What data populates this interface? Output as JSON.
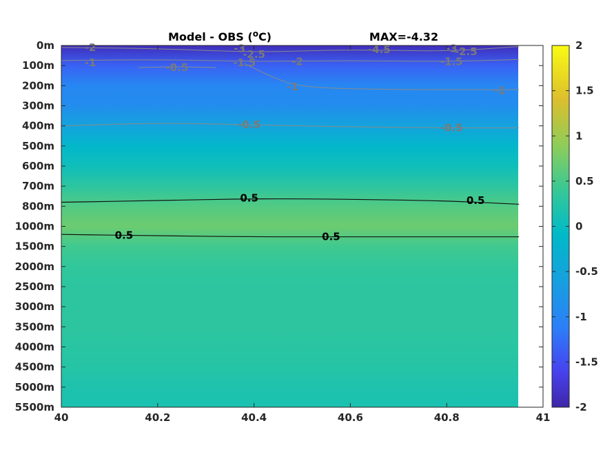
{
  "chart_data": {
    "type": "heatmap",
    "title": "Model - OBS (°C)",
    "title_parts": {
      "prefix": "Model - OBS (",
      "superscript": "o",
      "suffix": "C)"
    },
    "annotation": "MAX=-4.32",
    "x_ticks": [
      "40",
      "40.2",
      "40.4",
      "40.6",
      "40.8",
      "41"
    ],
    "x_tick_values": [
      40,
      40.2,
      40.4,
      40.6,
      40.8,
      41
    ],
    "xlim": [
      40,
      41
    ],
    "data_x_max": 40.95,
    "y_ticks": [
      "0m",
      "100m",
      "200m",
      "300m",
      "400m",
      "500m",
      "600m",
      "700m",
      "800m",
      "1000m",
      "1500m",
      "2000m",
      "2500m",
      "3000m",
      "3500m",
      "4000m",
      "4500m",
      "5000m",
      "5500m"
    ],
    "colorbar": {
      "ticks": [
        "2",
        "1.5",
        "1",
        "0.5",
        "0",
        "-0.5",
        "-1",
        "-1.5",
        "-2"
      ],
      "tick_values": [
        2,
        1.5,
        1,
        0.5,
        0,
        -0.5,
        -1,
        -1.5,
        -2
      ],
      "range": [
        -2,
        2
      ],
      "colormap": "parula"
    },
    "depth_profile": [
      {
        "depth": "0m",
        "value": -1.9
      },
      {
        "depth": "100m",
        "value": -1.35
      },
      {
        "depth": "200m",
        "value": -1.0
      },
      {
        "depth": "300m",
        "value": -0.9
      },
      {
        "depth": "400m",
        "value": -0.55
      },
      {
        "depth": "500m",
        "value": -0.15
      },
      {
        "depth": "600m",
        "value": 0.05
      },
      {
        "depth": "700m",
        "value": 0.3
      },
      {
        "depth": "800m",
        "value": 0.55
      },
      {
        "depth": "1000m",
        "value": 0.7
      },
      {
        "depth": "1500m",
        "value": 0.45
      },
      {
        "depth": "2000m",
        "value": 0.35
      },
      {
        "depth": "2500m",
        "value": 0.3
      },
      {
        "depth": "3000m",
        "value": 0.3
      },
      {
        "depth": "3500m",
        "value": 0.3
      },
      {
        "depth": "4000m",
        "value": 0.28
      },
      {
        "depth": "4500m",
        "value": 0.25
      },
      {
        "depth": "5000m",
        "value": 0.18
      },
      {
        "depth": "5500m",
        "value": 0.15
      }
    ],
    "contours": [
      {
        "level": 0.5,
        "style": "black",
        "points": [
          [
            40,
            7.8
          ],
          [
            40.2,
            7.72
          ],
          [
            40.4,
            7.62
          ],
          [
            40.6,
            7.65
          ],
          [
            40.8,
            7.73
          ],
          [
            40.95,
            7.9
          ]
        ],
        "labels": [
          {
            "text": "0.5",
            "x": 40.39,
            "y": 7.6
          },
          {
            "text": "0.5",
            "x": 40.86,
            "y": 7.72
          }
        ]
      },
      {
        "level": 0.5,
        "style": "black",
        "points": [
          [
            40,
            9.4
          ],
          [
            40.2,
            9.47
          ],
          [
            40.4,
            9.52
          ],
          [
            40.6,
            9.52
          ],
          [
            40.8,
            9.52
          ],
          [
            40.95,
            9.52
          ]
        ],
        "labels": [
          {
            "text": "0.5",
            "x": 40.13,
            "y": 9.45
          },
          {
            "text": "0.5",
            "x": 40.56,
            "y": 9.52
          }
        ]
      },
      {
        "level": -0.5,
        "style": "gray",
        "points": [
          [
            40,
            4.0
          ],
          [
            40.2,
            3.85
          ],
          [
            40.4,
            3.95
          ],
          [
            40.6,
            4.05
          ],
          [
            40.8,
            4.1
          ],
          [
            40.95,
            4.1
          ]
        ],
        "labels": [
          {
            "text": "-0.5",
            "x": 40.39,
            "y": 3.95
          },
          {
            "text": "-0.5",
            "x": 40.81,
            "y": 4.1
          }
        ]
      },
      {
        "level": -1,
        "style": "gray",
        "points": [
          [
            40.38,
            0.9
          ],
          [
            40.44,
            1.6
          ],
          [
            40.5,
            2.1
          ],
          [
            40.7,
            2.2
          ],
          [
            40.95,
            2.2
          ]
        ],
        "labels": [
          {
            "text": "-1",
            "x": 40.48,
            "y": 2.05
          },
          {
            "text": "-1",
            "x": 40.91,
            "y": 2.25
          }
        ]
      },
      {
        "level": -0.5,
        "style": "gray",
        "points": [
          [
            40.16,
            1.1
          ],
          [
            40.24,
            1.05
          ],
          [
            40.32,
            1.1
          ]
        ],
        "labels": [
          {
            "text": "-0.5",
            "x": 40.24,
            "y": 1.1
          }
        ]
      },
      {
        "level": -1.5,
        "style": "gray",
        "points": [
          [
            40,
            0.75
          ],
          [
            40.2,
            0.7
          ],
          [
            40.4,
            0.8
          ],
          [
            40.6,
            0.75
          ],
          [
            40.8,
            0.8
          ],
          [
            40.95,
            0.7
          ]
        ],
        "labels": [
          {
            "text": "-1",
            "x": 40.06,
            "y": 0.85
          },
          {
            "text": "-1.5",
            "x": 40.38,
            "y": 0.85
          },
          {
            "text": "-2",
            "x": 40.49,
            "y": 0.8
          },
          {
            "text": "-1.5",
            "x": 40.81,
            "y": 0.8
          }
        ]
      },
      {
        "level": -2.5,
        "style": "gray",
        "points": [
          [
            40,
            0.1
          ],
          [
            40.2,
            0.15
          ],
          [
            40.4,
            0.35
          ],
          [
            40.6,
            0.2
          ],
          [
            40.8,
            0.3
          ],
          [
            40.95,
            0.05
          ]
        ],
        "labels": [
          {
            "text": "-2",
            "x": 40.06,
            "y": 0.1
          },
          {
            "text": "-3",
            "x": 40.37,
            "y": 0.15
          },
          {
            "text": "-2.5",
            "x": 40.4,
            "y": 0.45
          },
          {
            "text": "-4.5",
            "x": 40.66,
            "y": 0.2
          },
          {
            "text": "-3",
            "x": 40.81,
            "y": 0.15
          },
          {
            "text": "-2.5",
            "x": 40.84,
            "y": 0.3
          }
        ]
      }
    ]
  }
}
